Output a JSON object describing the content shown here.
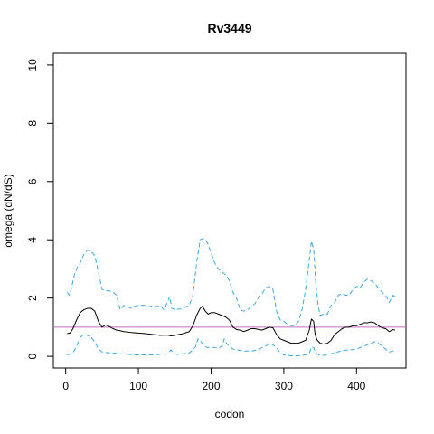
{
  "chart_data": {
    "type": "line",
    "title": "Rv3449",
    "xlabel": "codon",
    "ylabel": "omega (dN/dS)",
    "xlim": [
      -17,
      468
    ],
    "ylim": [
      -0.4,
      10.4
    ],
    "x_ticks": [
      0,
      100,
      200,
      300,
      400
    ],
    "y_ticks": [
      0,
      2,
      4,
      6,
      8,
      10
    ],
    "x_tick_labels": [
      "0",
      "100",
      "200",
      "300",
      "400"
    ],
    "y_tick_labels": [
      "0",
      "2",
      "4",
      "6",
      "8",
      "10"
    ],
    "grid": false,
    "legend": "none",
    "reference_line": {
      "y": 1,
      "color": "#c06fc0"
    },
    "series": [
      {
        "role": "upper_bound",
        "color": "#3ba7e0",
        "dash": "dashed",
        "points": [
          [
            2,
            2.2
          ],
          [
            5,
            2.1
          ],
          [
            8,
            2.35
          ],
          [
            12,
            2.8
          ],
          [
            16,
            3.05
          ],
          [
            20,
            3.2
          ],
          [
            25,
            3.5
          ],
          [
            30,
            3.65
          ],
          [
            35,
            3.6
          ],
          [
            40,
            3.45
          ],
          [
            45,
            2.9
          ],
          [
            50,
            2.3
          ],
          [
            55,
            2.25
          ],
          [
            60,
            2.25
          ],
          [
            65,
            2.2
          ],
          [
            70,
            2.1
          ],
          [
            75,
            1.6
          ],
          [
            80,
            1.75
          ],
          [
            85,
            1.7
          ],
          [
            90,
            1.65
          ],
          [
            95,
            1.72
          ],
          [
            100,
            1.75
          ],
          [
            110,
            1.75
          ],
          [
            115,
            1.7
          ],
          [
            120,
            1.75
          ],
          [
            125,
            1.7
          ],
          [
            130,
            1.75
          ],
          [
            135,
            1.6
          ],
          [
            140,
            1.85
          ],
          [
            143,
            2.05
          ],
          [
            146,
            1.65
          ],
          [
            150,
            1.6
          ],
          [
            155,
            1.62
          ],
          [
            160,
            1.62
          ],
          [
            165,
            1.7
          ],
          [
            170,
            1.75
          ],
          [
            175,
            2.1
          ],
          [
            180,
            3.2
          ],
          [
            185,
            4.0
          ],
          [
            190,
            4.05
          ],
          [
            195,
            3.9
          ],
          [
            200,
            3.55
          ],
          [
            205,
            3.2
          ],
          [
            210,
            3.0
          ],
          [
            215,
            2.9
          ],
          [
            220,
            2.8
          ],
          [
            225,
            2.6
          ],
          [
            230,
            2.2
          ],
          [
            235,
            2.0
          ],
          [
            240,
            1.6
          ],
          [
            245,
            1.55
          ],
          [
            250,
            1.6
          ],
          [
            255,
            1.7
          ],
          [
            260,
            1.8
          ],
          [
            265,
            2.0
          ],
          [
            270,
            2.15
          ],
          [
            275,
            2.35
          ],
          [
            280,
            2.4
          ],
          [
            285,
            2.3
          ],
          [
            290,
            1.55
          ],
          [
            295,
            1.25
          ],
          [
            300,
            1.2
          ],
          [
            305,
            1.1
          ],
          [
            310,
            1.05
          ],
          [
            315,
            1.05
          ],
          [
            320,
            1.2
          ],
          [
            325,
            1.6
          ],
          [
            330,
            2.3
          ],
          [
            335,
            3.3
          ],
          [
            338,
            3.95
          ],
          [
            341,
            3.7
          ],
          [
            344,
            2.5
          ],
          [
            347,
            1.8
          ],
          [
            350,
            1.4
          ],
          [
            355,
            1.45
          ],
          [
            360,
            1.45
          ],
          [
            365,
            1.75
          ],
          [
            370,
            1.85
          ],
          [
            375,
            2.1
          ],
          [
            380,
            2.15
          ],
          [
            385,
            2.1
          ],
          [
            390,
            2.1
          ],
          [
            395,
            2.3
          ],
          [
            400,
            2.4
          ],
          [
            405,
            2.35
          ],
          [
            410,
            2.55
          ],
          [
            415,
            2.65
          ],
          [
            420,
            2.6
          ],
          [
            425,
            2.5
          ],
          [
            430,
            2.35
          ],
          [
            435,
            2.2
          ],
          [
            440,
            2.1
          ],
          [
            445,
            1.85
          ],
          [
            450,
            2.1
          ],
          [
            453,
            2.05
          ]
        ]
      },
      {
        "role": "estimate",
        "color": "#000000",
        "dash": "solid",
        "points": [
          [
            2,
            0.78
          ],
          [
            6,
            0.8
          ],
          [
            10,
            0.95
          ],
          [
            15,
            1.25
          ],
          [
            20,
            1.5
          ],
          [
            25,
            1.6
          ],
          [
            30,
            1.65
          ],
          [
            35,
            1.65
          ],
          [
            40,
            1.55
          ],
          [
            45,
            1.2
          ],
          [
            50,
            1.0
          ],
          [
            55,
            1.08
          ],
          [
            60,
            1.02
          ],
          [
            65,
            0.95
          ],
          [
            70,
            0.9
          ],
          [
            75,
            0.88
          ],
          [
            80,
            0.85
          ],
          [
            90,
            0.82
          ],
          [
            100,
            0.8
          ],
          [
            110,
            0.78
          ],
          [
            120,
            0.75
          ],
          [
            130,
            0.72
          ],
          [
            140,
            0.73
          ],
          [
            145,
            0.7
          ],
          [
            150,
            0.72
          ],
          [
            160,
            0.77
          ],
          [
            170,
            0.85
          ],
          [
            175,
            1.05
          ],
          [
            180,
            1.4
          ],
          [
            185,
            1.65
          ],
          [
            188,
            1.72
          ],
          [
            192,
            1.55
          ],
          [
            196,
            1.45
          ],
          [
            200,
            1.5
          ],
          [
            205,
            1.5
          ],
          [
            210,
            1.45
          ],
          [
            215,
            1.4
          ],
          [
            220,
            1.35
          ],
          [
            225,
            1.25
          ],
          [
            230,
            1.0
          ],
          [
            235,
            0.92
          ],
          [
            240,
            0.9
          ],
          [
            245,
            0.85
          ],
          [
            250,
            0.9
          ],
          [
            255,
            0.95
          ],
          [
            260,
            0.95
          ],
          [
            270,
            0.9
          ],
          [
            275,
            0.95
          ],
          [
            280,
            1.0
          ],
          [
            285,
            0.98
          ],
          [
            290,
            0.75
          ],
          [
            295,
            0.6
          ],
          [
            300,
            0.55
          ],
          [
            310,
            0.45
          ],
          [
            320,
            0.45
          ],
          [
            325,
            0.5
          ],
          [
            330,
            0.55
          ],
          [
            335,
            0.9
          ],
          [
            338,
            1.28
          ],
          [
            341,
            1.2
          ],
          [
            343,
            0.75
          ],
          [
            346,
            0.55
          ],
          [
            350,
            0.45
          ],
          [
            355,
            0.42
          ],
          [
            360,
            0.45
          ],
          [
            365,
            0.55
          ],
          [
            370,
            0.75
          ],
          [
            375,
            0.85
          ],
          [
            380,
            0.95
          ],
          [
            385,
            1.0
          ],
          [
            390,
            1.0
          ],
          [
            395,
            1.05
          ],
          [
            400,
            1.05
          ],
          [
            405,
            1.1
          ],
          [
            410,
            1.15
          ],
          [
            415,
            1.15
          ],
          [
            420,
            1.18
          ],
          [
            425,
            1.15
          ],
          [
            430,
            1.05
          ],
          [
            435,
            0.98
          ],
          [
            440,
            0.95
          ],
          [
            445,
            0.85
          ],
          [
            450,
            0.92
          ],
          [
            453,
            0.9
          ]
        ]
      },
      {
        "role": "lower_bound",
        "color": "#3ba7e0",
        "dash": "dashed",
        "points": [
          [
            2,
            0.05
          ],
          [
            6,
            0.08
          ],
          [
            10,
            0.12
          ],
          [
            15,
            0.35
          ],
          [
            20,
            0.65
          ],
          [
            25,
            0.75
          ],
          [
            30,
            0.72
          ],
          [
            35,
            0.65
          ],
          [
            40,
            0.5
          ],
          [
            45,
            0.25
          ],
          [
            50,
            0.15
          ],
          [
            60,
            0.12
          ],
          [
            70,
            0.1
          ],
          [
            80,
            0.08
          ],
          [
            90,
            0.06
          ],
          [
            100,
            0.05
          ],
          [
            110,
            0.05
          ],
          [
            120,
            0.05
          ],
          [
            130,
            0.07
          ],
          [
            140,
            0.08
          ],
          [
            145,
            0.22
          ],
          [
            148,
            0.1
          ],
          [
            155,
            0.06
          ],
          [
            160,
            0.08
          ],
          [
            170,
            0.12
          ],
          [
            178,
            0.3
          ],
          [
            182,
            0.6
          ],
          [
            186,
            0.5
          ],
          [
            190,
            0.35
          ],
          [
            195,
            0.3
          ],
          [
            200,
            0.32
          ],
          [
            205,
            0.3
          ],
          [
            210,
            0.28
          ],
          [
            215,
            0.35
          ],
          [
            218,
            0.6
          ],
          [
            221,
            0.45
          ],
          [
            225,
            0.35
          ],
          [
            230,
            0.25
          ],
          [
            240,
            0.2
          ],
          [
            245,
            0.18
          ],
          [
            255,
            0.18
          ],
          [
            265,
            0.22
          ],
          [
            270,
            0.3
          ],
          [
            275,
            0.35
          ],
          [
            280,
            0.45
          ],
          [
            285,
            0.4
          ],
          [
            290,
            0.3
          ],
          [
            295,
            0.12
          ],
          [
            300,
            0.05
          ],
          [
            310,
            0.02
          ],
          [
            320,
            0.02
          ],
          [
            330,
            0.05
          ],
          [
            335,
            0.1
          ],
          [
            338,
            0.32
          ],
          [
            341,
            0.3
          ],
          [
            344,
            0.12
          ],
          [
            350,
            0.02
          ],
          [
            360,
            0.05
          ],
          [
            370,
            0.12
          ],
          [
            380,
            0.2
          ],
          [
            390,
            0.22
          ],
          [
            400,
            0.25
          ],
          [
            410,
            0.35
          ],
          [
            415,
            0.4
          ],
          [
            420,
            0.45
          ],
          [
            425,
            0.5
          ],
          [
            430,
            0.45
          ],
          [
            435,
            0.35
          ],
          [
            440,
            0.25
          ],
          [
            445,
            0.15
          ],
          [
            450,
            0.18
          ],
          [
            453,
            0.12
          ]
        ]
      }
    ]
  }
}
